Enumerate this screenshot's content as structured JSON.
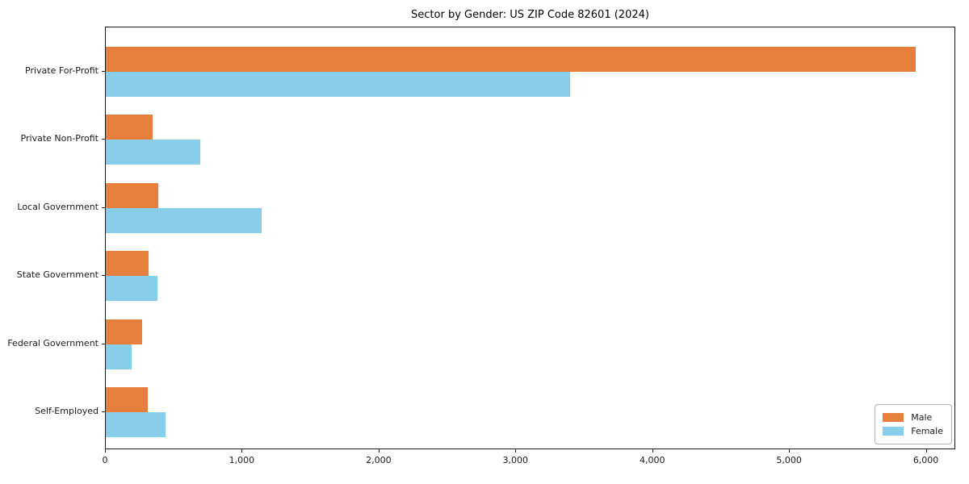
{
  "chart_data": {
    "type": "bar",
    "orientation": "horizontal",
    "title": "Sector by Gender: US ZIP Code 82601 (2024)",
    "categories": [
      "Private For-Profit",
      "Private Non-Profit",
      "Local Government",
      "State Government",
      "Federal Government",
      "Self-Employed"
    ],
    "series": [
      {
        "name": "Male",
        "color": "#e87e3c",
        "values": [
          5930,
          345,
          385,
          315,
          265,
          305
        ]
      },
      {
        "name": "Female",
        "color": "#87ceeb",
        "values": [
          3400,
          690,
          1140,
          380,
          190,
          440
        ]
      }
    ],
    "xlabel": "",
    "ylabel": "",
    "xlim": [
      0,
      6215
    ],
    "xticks": [
      0,
      1000,
      2000,
      3000,
      4000,
      5000,
      6000
    ],
    "xtick_labels": [
      "0",
      "1,000",
      "2,000",
      "3,000",
      "4,000",
      "5,000",
      "6,000"
    ],
    "grid": false,
    "legend": {
      "position": "lower right",
      "entries": [
        "Male",
        "Female"
      ]
    }
  }
}
